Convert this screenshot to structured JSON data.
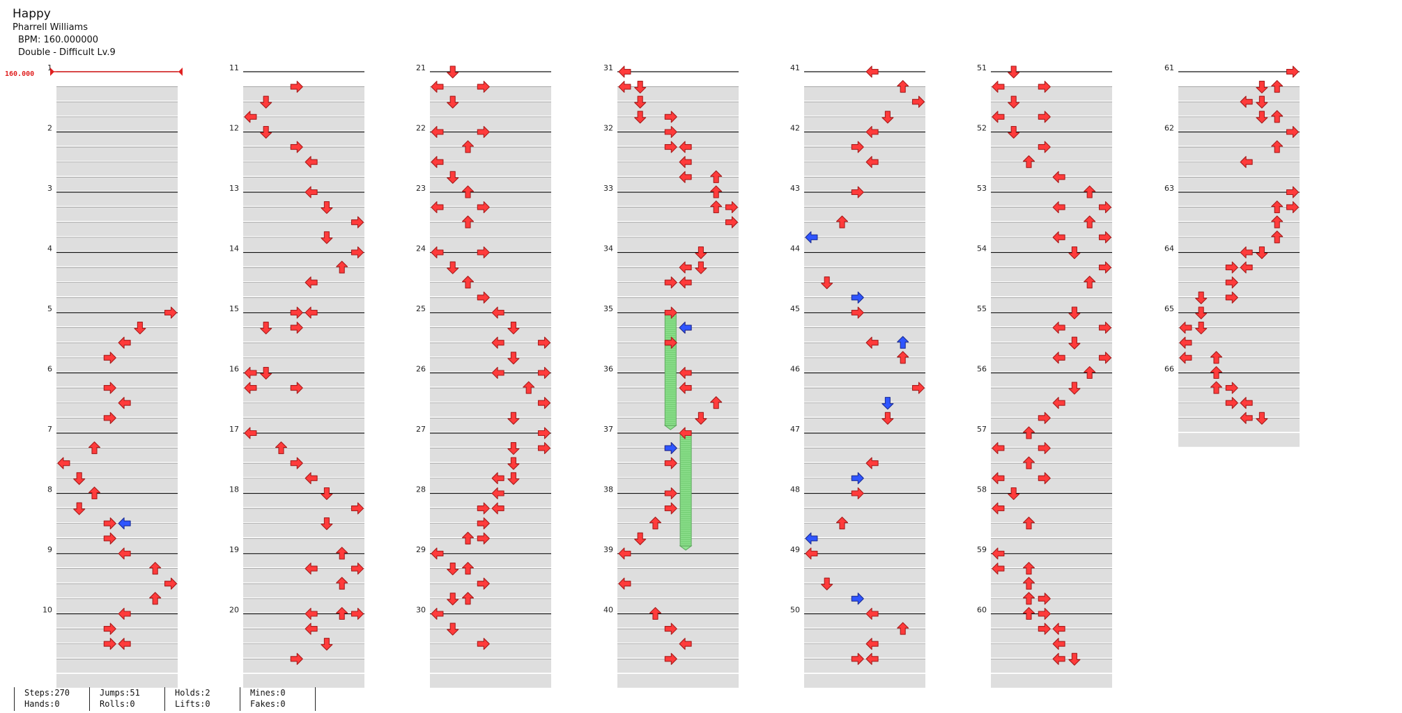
{
  "song": {
    "title": "Happy",
    "artist": "Pharrell Williams",
    "bpm_line": "BPM: 160.000000",
    "difficulty_line": "Double - Difficult  Lv.9"
  },
  "bpm_marker": "160.000",
  "colors": {
    "tap": "#ff3b3b",
    "mine_blue": "#2f55ff",
    "hold": "#8ee08e",
    "band": "#dedede"
  },
  "stats": {
    "steps": "Steps:270",
    "hands": "Hands:0",
    "jumps": "Jumps:51",
    "rolls": "Rolls:0",
    "holds": "Holds:2",
    "lifts": "Lifts:0",
    "mines": "Mines:0",
    "fakes": "Fakes:0"
  },
  "chart_data": {
    "type": "table",
    "lanes": 8,
    "measures": [
      {
        "n": 1,
        "notes": []
      },
      {
        "n": 2,
        "notes": []
      },
      {
        "n": 3,
        "notes": []
      },
      {
        "n": 4,
        "notes": []
      },
      {
        "n": 5,
        "notes": [
          [
            0,
            7
          ],
          [
            1,
            5
          ],
          [
            2,
            4
          ],
          [
            3,
            3
          ]
        ]
      },
      {
        "n": 6,
        "notes": [
          [
            1,
            3
          ],
          [
            2,
            4
          ],
          [
            3,
            3
          ]
        ]
      },
      {
        "n": 7,
        "notes": [
          [
            1,
            2
          ],
          [
            2,
            0
          ],
          [
            3,
            1
          ]
        ]
      },
      {
        "n": 8,
        "notes": [
          [
            0,
            2
          ],
          [
            1,
            1
          ],
          [
            2,
            3
          ],
          [
            2,
            "4b"
          ],
          [
            3,
            3
          ]
        ]
      },
      {
        "n": 9,
        "notes": [
          [
            0,
            4
          ],
          [
            1,
            6
          ],
          [
            2,
            7
          ],
          [
            3,
            6
          ]
        ]
      },
      {
        "n": 10,
        "notes": [
          [
            0,
            4
          ],
          [
            1,
            3
          ],
          [
            2,
            3
          ],
          [
            2,
            4
          ]
        ]
      },
      {
        "n": 11,
        "notes": [
          [
            1,
            3
          ],
          [
            2,
            1
          ],
          [
            3,
            0
          ]
        ]
      },
      {
        "n": 12,
        "notes": [
          [
            0,
            1
          ],
          [
            1,
            3
          ],
          [
            2,
            4
          ]
        ]
      },
      {
        "n": 13,
        "notes": [
          [
            0,
            4
          ],
          [
            1,
            5
          ],
          [
            2,
            7
          ],
          [
            3,
            5
          ]
        ]
      },
      {
        "n": 14,
        "notes": [
          [
            0,
            7
          ],
          [
            1,
            6
          ],
          [
            2,
            4
          ]
        ]
      },
      {
        "n": 15,
        "notes": [
          [
            0,
            3
          ],
          [
            0,
            4
          ],
          [
            1,
            1
          ],
          [
            1,
            3
          ]
        ]
      },
      {
        "n": 16,
        "notes": [
          [
            0,
            0
          ],
          [
            0,
            1
          ],
          [
            1,
            0
          ],
          [
            1,
            3
          ]
        ]
      },
      {
        "n": 17,
        "notes": [
          [
            0,
            0
          ],
          [
            1,
            2
          ],
          [
            2,
            3
          ],
          [
            3,
            4
          ]
        ]
      },
      {
        "n": 18,
        "notes": [
          [
            0,
            5
          ],
          [
            1,
            7
          ],
          [
            2,
            5
          ]
        ]
      },
      {
        "n": 19,
        "notes": [
          [
            0,
            6
          ],
          [
            1,
            4
          ],
          [
            1,
            7
          ],
          [
            2,
            6
          ]
        ]
      },
      {
        "n": 20,
        "notes": [
          [
            0,
            4
          ],
          [
            0,
            7
          ],
          [
            0,
            6
          ],
          [
            1,
            4
          ],
          [
            2,
            5
          ],
          [
            3,
            3
          ]
        ]
      },
      {
        "n": 21,
        "notes": [
          [
            0,
            1
          ],
          [
            1,
            0
          ],
          [
            1,
            3
          ],
          [
            2,
            1
          ]
        ]
      },
      {
        "n": 22,
        "notes": [
          [
            0,
            0
          ],
          [
            0,
            3
          ],
          [
            1,
            2
          ],
          [
            2,
            0
          ],
          [
            3,
            1
          ]
        ]
      },
      {
        "n": 23,
        "notes": [
          [
            0,
            2
          ],
          [
            1,
            0
          ],
          [
            1,
            3
          ],
          [
            2,
            2
          ]
        ]
      },
      {
        "n": 24,
        "notes": [
          [
            0,
            0
          ],
          [
            0,
            3
          ],
          [
            1,
            1
          ],
          [
            2,
            2
          ],
          [
            3,
            3
          ]
        ]
      },
      {
        "n": 25,
        "notes": [
          [
            0,
            4
          ],
          [
            1,
            5
          ],
          [
            2,
            4
          ],
          [
            2,
            7
          ],
          [
            3,
            5
          ]
        ]
      },
      {
        "n": 26,
        "notes": [
          [
            0,
            4
          ],
          [
            0,
            7
          ],
          [
            1,
            6
          ],
          [
            2,
            7
          ],
          [
            3,
            5
          ]
        ]
      },
      {
        "n": 27,
        "notes": [
          [
            0,
            7
          ],
          [
            1,
            5
          ],
          [
            1,
            7
          ],
          [
            2,
            5
          ],
          [
            3,
            5
          ],
          [
            3,
            4
          ]
        ]
      },
      {
        "n": 28,
        "notes": [
          [
            0,
            4
          ],
          [
            1,
            3
          ],
          [
            1,
            4
          ],
          [
            2,
            3
          ],
          [
            3,
            2
          ],
          [
            3,
            3
          ]
        ]
      },
      {
        "n": 29,
        "notes": [
          [
            0,
            0
          ],
          [
            1,
            1
          ],
          [
            1,
            2
          ],
          [
            2,
            3
          ],
          [
            3,
            1
          ],
          [
            3,
            2
          ]
        ]
      },
      {
        "n": 30,
        "notes": [
          [
            0,
            0
          ],
          [
            1,
            1
          ],
          [
            2,
            3
          ]
        ]
      },
      {
        "n": 31,
        "notes": [
          [
            0,
            0
          ],
          [
            1,
            0
          ],
          [
            1,
            1
          ],
          [
            2,
            1
          ],
          [
            3,
            1
          ],
          [
            3,
            3
          ]
        ]
      },
      {
        "n": 32,
        "notes": [
          [
            0,
            3
          ],
          [
            1,
            3
          ],
          [
            1,
            4
          ],
          [
            2,
            4
          ],
          [
            3,
            4
          ],
          [
            3,
            6
          ]
        ]
      },
      {
        "n": 33,
        "notes": [
          [
            0,
            6
          ],
          [
            1,
            6
          ],
          [
            1,
            7
          ],
          [
            2,
            7
          ]
        ]
      },
      {
        "n": 34,
        "notes": [
          [
            0,
            5
          ],
          [
            1,
            4
          ],
          [
            1,
            5
          ],
          [
            2,
            3
          ],
          [
            2,
            4
          ]
        ]
      },
      {
        "n": 35,
        "notes": [
          [
            0,
            3
          ],
          [
            1,
            4
          ],
          [
            1,
            "4b"
          ],
          [
            2,
            3
          ]
        ]
      },
      {
        "n": 36,
        "notes": [
          [
            0,
            4
          ],
          [
            1,
            4
          ],
          [
            2,
            6
          ],
          [
            3,
            5
          ]
        ]
      },
      {
        "n": 37,
        "notes": [
          [
            0,
            4
          ],
          [
            1,
            3
          ],
          [
            1,
            "3b"
          ],
          [
            2,
            3
          ]
        ]
      },
      {
        "n": 38,
        "notes": [
          [
            0,
            3
          ],
          [
            1,
            3
          ],
          [
            2,
            2
          ],
          [
            3,
            1
          ]
        ]
      },
      {
        "n": 39,
        "notes": [
          [
            0,
            0
          ],
          [
            2,
            0
          ]
        ]
      },
      {
        "n": 40,
        "notes": [
          [
            0,
            2
          ],
          [
            1,
            3
          ],
          [
            2,
            4
          ],
          [
            3,
            3
          ]
        ]
      },
      {
        "n": 41,
        "notes": [
          [
            0,
            4
          ],
          [
            1,
            6
          ],
          [
            2,
            7
          ],
          [
            3,
            5
          ]
        ]
      },
      {
        "n": 42,
        "notes": [
          [
            0,
            4
          ],
          [
            1,
            3
          ],
          [
            2,
            4
          ]
        ]
      },
      {
        "n": 43,
        "notes": [
          [
            0,
            3
          ],
          [
            2,
            2
          ],
          [
            3,
            "0b"
          ]
        ]
      },
      {
        "n": 44,
        "notes": [
          [
            2,
            1
          ],
          [
            3,
            "3b"
          ]
        ]
      },
      {
        "n": 45,
        "notes": [
          [
            0,
            3
          ],
          [
            2,
            4
          ],
          [
            2,
            "6b"
          ],
          [
            3,
            6
          ]
        ]
      },
      {
        "n": 46,
        "notes": [
          [
            1,
            7
          ],
          [
            2,
            "5b"
          ],
          [
            3,
            5
          ]
        ]
      },
      {
        "n": 47,
        "notes": [
          [
            2,
            4
          ],
          [
            3,
            "3b"
          ]
        ]
      },
      {
        "n": 48,
        "notes": [
          [
            0,
            3
          ],
          [
            2,
            2
          ],
          [
            3,
            "0b"
          ]
        ]
      },
      {
        "n": 49,
        "notes": [
          [
            0,
            0
          ],
          [
            2,
            1
          ],
          [
            3,
            "3b"
          ]
        ]
      },
      {
        "n": 50,
        "notes": [
          [
            0,
            4
          ],
          [
            1,
            6
          ],
          [
            2,
            4
          ],
          [
            3,
            3
          ],
          [
            3,
            4
          ]
        ]
      },
      {
        "n": 51,
        "notes": [
          [
            0,
            1
          ],
          [
            1,
            0
          ],
          [
            1,
            3
          ],
          [
            2,
            1
          ],
          [
            3,
            0
          ],
          [
            3,
            3
          ]
        ]
      },
      {
        "n": 52,
        "notes": [
          [
            0,
            1
          ],
          [
            1,
            3
          ],
          [
            2,
            2
          ],
          [
            3,
            4
          ]
        ]
      },
      {
        "n": 53,
        "notes": [
          [
            0,
            6
          ],
          [
            1,
            4
          ],
          [
            1,
            7
          ],
          [
            2,
            6
          ],
          [
            3,
            4
          ],
          [
            3,
            7
          ]
        ]
      },
      {
        "n": 54,
        "notes": [
          [
            0,
            5
          ],
          [
            1,
            7
          ],
          [
            2,
            6
          ]
        ]
      },
      {
        "n": 55,
        "notes": [
          [
            0,
            5
          ],
          [
            1,
            4
          ],
          [
            1,
            7
          ],
          [
            2,
            5
          ],
          [
            3,
            4
          ],
          [
            3,
            7
          ]
        ]
      },
      {
        "n": 56,
        "notes": [
          [
            0,
            6
          ],
          [
            1,
            5
          ],
          [
            2,
            4
          ],
          [
            3,
            3
          ]
        ]
      },
      {
        "n": 57,
        "notes": [
          [
            0,
            2
          ],
          [
            1,
            0
          ],
          [
            1,
            3
          ],
          [
            2,
            2
          ],
          [
            3,
            0
          ],
          [
            3,
            3
          ]
        ]
      },
      {
        "n": 58,
        "notes": [
          [
            0,
            1
          ],
          [
            1,
            0
          ],
          [
            2,
            2
          ]
        ]
      },
      {
        "n": 59,
        "notes": [
          [
            0,
            0
          ],
          [
            1,
            0
          ],
          [
            1,
            2
          ],
          [
            2,
            2
          ],
          [
            3,
            2
          ],
          [
            3,
            3
          ]
        ]
      },
      {
        "n": 60,
        "notes": [
          [
            0,
            2
          ],
          [
            0,
            3
          ],
          [
            1,
            3
          ],
          [
            1,
            4
          ],
          [
            2,
            4
          ],
          [
            3,
            4
          ],
          [
            3,
            5
          ]
        ]
      },
      {
        "n": 61,
        "notes": [
          [
            0,
            7
          ],
          [
            1,
            5
          ],
          [
            1,
            6
          ],
          [
            2,
            4
          ],
          [
            2,
            5
          ],
          [
            3,
            5
          ],
          [
            3,
            6
          ]
        ]
      },
      {
        "n": 62,
        "notes": [
          [
            0,
            7
          ],
          [
            1,
            6
          ],
          [
            2,
            4
          ]
        ]
      },
      {
        "n": 63,
        "notes": [
          [
            0,
            7
          ],
          [
            1,
            6
          ],
          [
            1,
            7
          ],
          [
            2,
            6
          ],
          [
            3,
            6
          ]
        ]
      },
      {
        "n": 64,
        "notes": [
          [
            0,
            4
          ],
          [
            0,
            5
          ],
          [
            1,
            3
          ],
          [
            1,
            4
          ],
          [
            2,
            3
          ],
          [
            3,
            1
          ],
          [
            3,
            3
          ]
        ]
      },
      {
        "n": 65,
        "notes": [
          [
            0,
            1
          ],
          [
            1,
            0
          ],
          [
            1,
            1
          ],
          [
            2,
            0
          ],
          [
            3,
            0
          ],
          [
            3,
            2
          ]
        ]
      },
      {
        "n": 66,
        "notes": [
          [
            0,
            2
          ],
          [
            1,
            2
          ],
          [
            1,
            3
          ],
          [
            2,
            3
          ],
          [
            2,
            4
          ],
          [
            3,
            4
          ],
          [
            3,
            5
          ]
        ]
      }
    ],
    "holds": [
      {
        "lane": 3,
        "from": [
          35,
          0
        ],
        "to": [
          36,
          3
        ]
      },
      {
        "lane": 4,
        "from": [
          37,
          0
        ],
        "to": [
          38,
          3
        ]
      }
    ]
  }
}
